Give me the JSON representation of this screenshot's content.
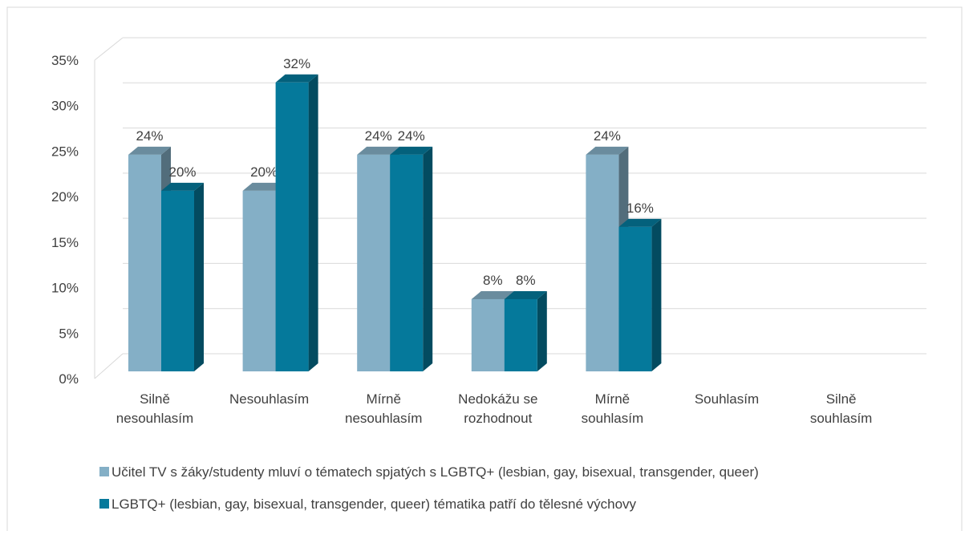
{
  "chart_data": {
    "type": "bar3d",
    "categories": [
      "Silně\nnesouhlasím",
      "Nesouhlasím",
      "Mírně\nnesouhlasím",
      "Nedokážu se\nrozhodnout",
      "Mírně\nsouhlasím",
      "Souhlasím",
      "Silně\nsouhlasím"
    ],
    "series": [
      {
        "name": "Učitel TV s žáky/studenty mluví o tématech spjatých s LGBTQ+ (lesbian, gay, bisexual, transgender, queer)",
        "color": "#84afc6",
        "values": [
          24,
          20,
          24,
          8,
          24,
          null,
          null
        ],
        "value_labels": [
          "24%",
          "20%",
          "24%",
          "8%",
          "24%",
          null,
          null
        ]
      },
      {
        "name": "LGBTQ+ (lesbian, gay, bisexual, transgender, queer) tématika patří do tělesné výchovy",
        "color": "#05799b",
        "values": [
          20,
          32,
          24,
          8,
          16,
          null,
          null
        ],
        "value_labels": [
          "20%",
          "32%",
          "24%",
          "8%",
          "16%",
          null,
          null
        ]
      }
    ],
    "ylim": [
      0,
      35
    ],
    "yticks": [
      {
        "value": 0,
        "label": "0%"
      },
      {
        "value": 5,
        "label": "5%"
      },
      {
        "value": 10,
        "label": "10%"
      },
      {
        "value": 15,
        "label": "15%"
      },
      {
        "value": 20,
        "label": "20%"
      },
      {
        "value": 25,
        "label": "25%"
      },
      {
        "value": 30,
        "label": "30%"
      },
      {
        "value": 35,
        "label": "35%"
      }
    ],
    "grid": true,
    "legend": "bottom"
  }
}
